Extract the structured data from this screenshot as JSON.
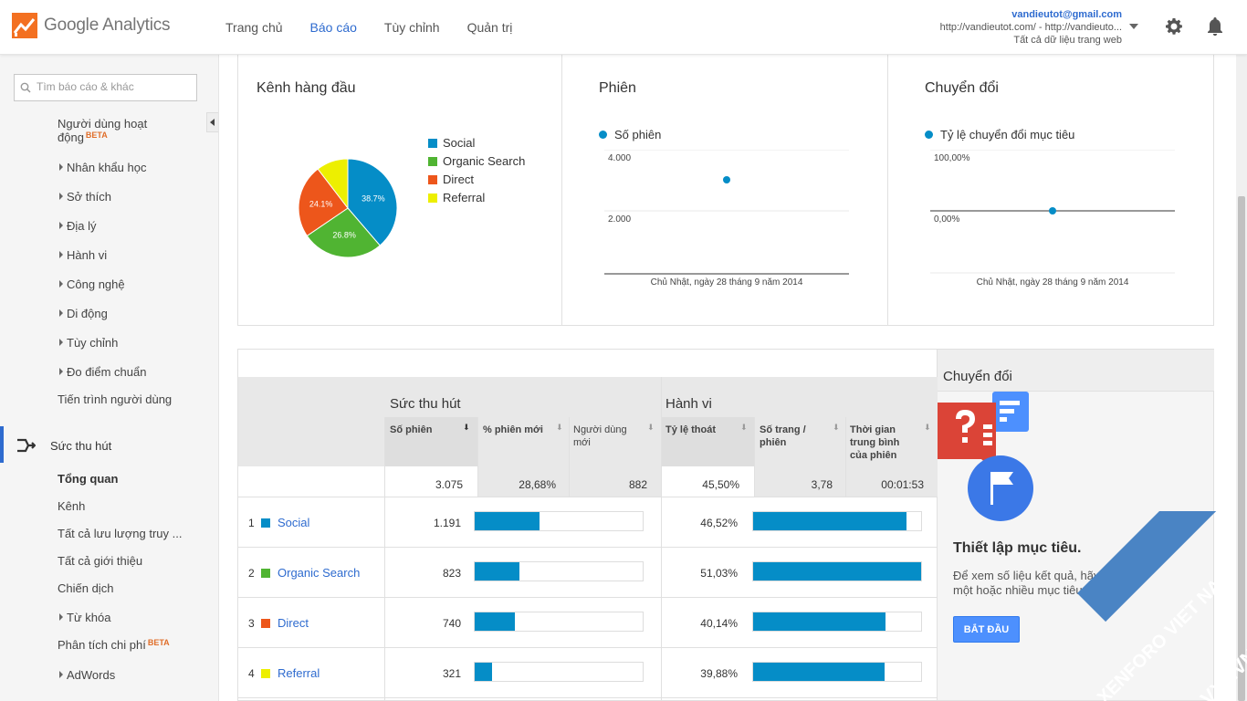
{
  "header": {
    "logo_text": "Google Analytics",
    "nav": [
      "Trang chủ",
      "Báo cáo",
      "Tùy chỉnh",
      "Quản trị"
    ],
    "active_nav": "Báo cáo",
    "account_email": "vandieutot@gmail.com",
    "account_property": "http://vandieutot.com/ - http://vandieuto...",
    "account_view": "Tất cả dữ liệu trang web"
  },
  "sidebar": {
    "search_placeholder": "Tìm báo cáo & khác",
    "active_users_line1": "Người dùng hoạt",
    "active_users_line2": "động",
    "beta_label": "BETA",
    "audience_items": [
      "Nhân khẩu học",
      "Sở thích",
      "Địa lý",
      "Hành vi",
      "Công nghệ",
      "Di động",
      "Tùy chỉnh",
      "Đo điểm chuẩn"
    ],
    "users_flow": "Tiến trình người dùng",
    "acquisition": "Sức thu hút",
    "acq_overview": "Tổng quan",
    "acq_channels": "Kênh",
    "acq_all_traffic": "Tất cả lưu lượng truy ...",
    "acq_all_referrals": "Tất cả giới thiệu",
    "acq_campaigns": "Chiến dịch",
    "acq_keywords": "Từ khóa",
    "acq_cost": "Phân tích chi phí",
    "acq_adwords": "AdWords"
  },
  "top_channels": {
    "title": "Kênh hàng đầu"
  },
  "sessions_card": {
    "title": "Phiên",
    "legend": "Số phiên",
    "y_ticks": [
      "4.000",
      "2.000"
    ],
    "x_label": "Chủ Nhật, ngày 28 tháng 9 năm 2014"
  },
  "conversion_card": {
    "title": "Chuyển đổi",
    "legend": "Tỷ lệ chuyển đổi mục tiêu",
    "y_ticks": [
      "100,00%",
      "0,00%"
    ],
    "x_label": "Chủ Nhật, ngày 28 tháng 9 năm 2014"
  },
  "chart_data": [
    {
      "type": "pie",
      "categories": [
        "Social",
        "Organic Search",
        "Direct",
        "Referral"
      ],
      "values": [
        38.7,
        26.8,
        24.1,
        10.4
      ],
      "labels": [
        "38.7%",
        "26.8%",
        "24.1%",
        ""
      ],
      "colors": [
        "#058dc7",
        "#50b432",
        "#ed561b",
        "#edef00"
      ]
    },
    {
      "type": "scatter",
      "series": [
        {
          "name": "Số phiên",
          "values": [
            3075
          ]
        }
      ],
      "ylim": [
        0,
        4000
      ]
    },
    {
      "type": "line",
      "series": [
        {
          "name": "Tỷ lệ chuyển đổi mục tiêu",
          "values": [
            0
          ]
        }
      ],
      "ylim": [
        0,
        100
      ]
    }
  ],
  "table": {
    "acq_header": "Sức thu hút",
    "beh_header": "Hành vi",
    "col_sessions": "Số phiên",
    "col_new_pct": "% phiên mới",
    "col_new_users_1": "Người dùng",
    "col_new_users_2": "mới",
    "col_bounce": "Tỷ lệ thoát",
    "col_pages_1": "Số trang /",
    "col_pages_2": "phiên",
    "col_dur_1": "Thời gian",
    "col_dur_2": "trung bình",
    "col_dur_3": "của phiên",
    "totals": {
      "sessions": "3.075",
      "new_pct": "28,68%",
      "new_users": "882",
      "bounce": "45,50%",
      "pages": "3,78",
      "duration": "00:01:53"
    },
    "rows": [
      {
        "idx": "1",
        "name": "Social",
        "color": "#058dc7",
        "sessions": "1.191",
        "sessions_frac": 0.387,
        "bounce": "46,52%",
        "bounce_frac": 0.9121
      },
      {
        "idx": "2",
        "name": "Organic Search",
        "color": "#50b432",
        "sessions": "823",
        "sessions_frac": 0.268,
        "bounce": "51,03%",
        "bounce_frac": 1.0
      },
      {
        "idx": "3",
        "name": "Direct",
        "color": "#ed561b",
        "sessions": "740",
        "sessions_frac": 0.241,
        "bounce": "40,14%",
        "bounce_frac": 0.7866
      },
      {
        "idx": "4",
        "name": "Referral",
        "color": "#edef00",
        "sessions": "321",
        "sessions_frac": 0.104,
        "bounce": "39,88%",
        "bounce_frac": 0.7815
      }
    ]
  },
  "conversion_panel": {
    "title": "Chuyển đổi",
    "heading": "Thiết lập mục tiêu.",
    "description": "Để xem số liệu kết quả, hãy xác định một hoặc nhiều mục tiêu.",
    "button": "BẮT ĐẦU"
  },
  "watermark": {
    "text1": "XENFORO VIET NAM",
    "text2": "VXF.VN"
  }
}
